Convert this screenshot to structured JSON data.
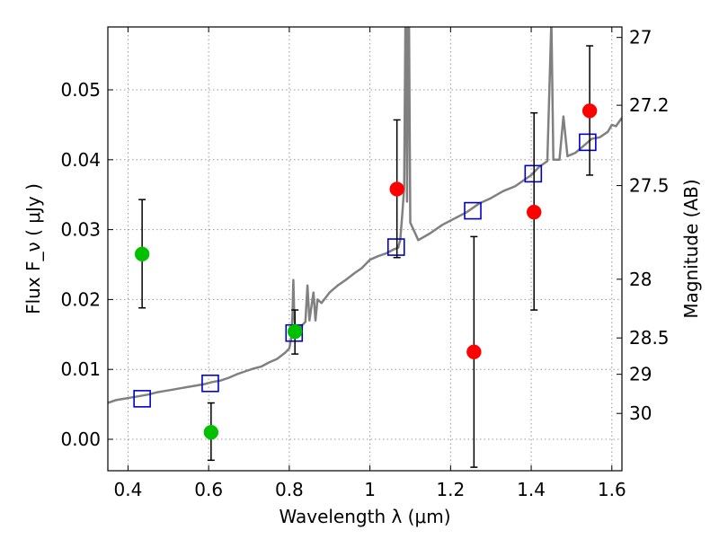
{
  "chart_data": {
    "type": "scatter",
    "xlabel": "Wavelength  λ (μm)",
    "ylabel": "Flux  F_ν  ( μJy )",
    "ylabel_right": "Magnitude (AB)",
    "xlim": [
      0.35,
      1.625
    ],
    "ylim": [
      -0.0045,
      0.059
    ],
    "grid": true,
    "x_ticks": [
      0.4,
      0.6,
      0.8,
      1.0,
      1.2,
      1.4,
      1.6
    ],
    "x_tick_labels": [
      "0.4",
      "0.6",
      "0.8",
      "1",
      "1.2",
      "1.4",
      "1.6"
    ],
    "y_ticks": [
      0.0,
      0.01,
      0.02,
      0.03,
      0.04,
      0.05
    ],
    "y_tick_labels": [
      "0.00",
      "0.01",
      "0.02",
      "0.03",
      "0.04",
      "0.05"
    ],
    "right_ticks": [
      {
        "label": "27",
        "flux": 0.0575
      },
      {
        "label": "27.2",
        "flux": 0.0478
      },
      {
        "label": "27.5",
        "flux": 0.0363
      },
      {
        "label": "28",
        "flux": 0.0229
      },
      {
        "label": "28.5",
        "flux": 0.0145
      },
      {
        "label": "29",
        "flux": 0.0093
      },
      {
        "label": "30",
        "flux": 0.0037
      }
    ],
    "colors": {
      "model_line": "#808080",
      "model_points": "#0000cc",
      "observed_green": "#00c000",
      "observed_red": "#ff0000",
      "error_bar": "#000000",
      "grid": "#999999"
    },
    "model_spectrum": [
      [
        0.35,
        0.0052
      ],
      [
        0.37,
        0.0056
      ],
      [
        0.39,
        0.0058
      ],
      [
        0.41,
        0.006
      ],
      [
        0.43,
        0.0062
      ],
      [
        0.45,
        0.0064
      ],
      [
        0.47,
        0.0067
      ],
      [
        0.49,
        0.0069
      ],
      [
        0.51,
        0.0071
      ],
      [
        0.53,
        0.0073
      ],
      [
        0.55,
        0.0075
      ],
      [
        0.57,
        0.0077
      ],
      [
        0.59,
        0.0079
      ],
      [
        0.61,
        0.0082
      ],
      [
        0.63,
        0.0084
      ],
      [
        0.65,
        0.0088
      ],
      [
        0.67,
        0.0093
      ],
      [
        0.69,
        0.0097
      ],
      [
        0.71,
        0.0101
      ],
      [
        0.73,
        0.0104
      ],
      [
        0.75,
        0.011
      ],
      [
        0.77,
        0.0115
      ],
      [
        0.79,
        0.0124
      ],
      [
        0.8,
        0.013
      ],
      [
        0.805,
        0.0145
      ],
      [
        0.808,
        0.018
      ],
      [
        0.81,
        0.0228
      ],
      [
        0.812,
        0.018
      ],
      [
        0.815,
        0.0155
      ],
      [
        0.82,
        0.0158
      ],
      [
        0.83,
        0.0162
      ],
      [
        0.84,
        0.0168
      ],
      [
        0.845,
        0.022
      ],
      [
        0.85,
        0.017
      ],
      [
        0.86,
        0.021
      ],
      [
        0.865,
        0.017
      ],
      [
        0.87,
        0.02
      ],
      [
        0.88,
        0.0195
      ],
      [
        0.9,
        0.021
      ],
      [
        0.92,
        0.022
      ],
      [
        0.94,
        0.0228
      ],
      [
        0.96,
        0.0237
      ],
      [
        0.98,
        0.0245
      ],
      [
        1.0,
        0.0257
      ],
      [
        1.02,
        0.0262
      ],
      [
        1.04,
        0.0266
      ],
      [
        1.06,
        0.0272
      ],
      [
        1.07,
        0.0274
      ],
      [
        1.075,
        0.0285
      ],
      [
        1.08,
        0.032
      ],
      [
        1.085,
        0.036
      ],
      [
        1.088,
        0.06
      ],
      [
        1.09,
        0.06
      ],
      [
        1.092,
        0.034
      ],
      [
        1.095,
        0.06
      ],
      [
        1.097,
        0.06
      ],
      [
        1.1,
        0.031
      ],
      [
        1.12,
        0.0285
      ],
      [
        1.15,
        0.0295
      ],
      [
        1.18,
        0.0307
      ],
      [
        1.21,
        0.0316
      ],
      [
        1.24,
        0.0325
      ],
      [
        1.27,
        0.0337
      ],
      [
        1.3,
        0.0345
      ],
      [
        1.33,
        0.0355
      ],
      [
        1.36,
        0.0362
      ],
      [
        1.38,
        0.037
      ],
      [
        1.4,
        0.0378
      ],
      [
        1.42,
        0.039
      ],
      [
        1.44,
        0.0398
      ],
      [
        1.45,
        0.06
      ],
      [
        1.455,
        0.04
      ],
      [
        1.47,
        0.04
      ],
      [
        1.48,
        0.0462
      ],
      [
        1.49,
        0.0405
      ],
      [
        1.51,
        0.041
      ],
      [
        1.53,
        0.042
      ],
      [
        1.55,
        0.043
      ],
      [
        1.57,
        0.0432
      ],
      [
        1.59,
        0.044
      ],
      [
        1.6,
        0.045
      ],
      [
        1.61,
        0.0448
      ],
      [
        1.625,
        0.046
      ]
    ],
    "series": [
      {
        "kind": "model_points",
        "marker": "open-square",
        "x": [
          0.435,
          0.604,
          0.812,
          1.065,
          1.255,
          1.405,
          1.54
        ],
        "y": [
          0.0058,
          0.008,
          0.0152,
          0.0275,
          0.0327,
          0.038,
          0.0425
        ]
      },
      {
        "kind": "observed",
        "marker": "filled-circle",
        "color": "observed_green",
        "x": [
          0.435,
          0.606,
          0.814
        ],
        "y": [
          0.0265,
          0.001,
          0.0154
        ],
        "err_low": [
          0.0188,
          -0.003,
          0.0122
        ],
        "err_high": [
          0.0343,
          0.0052,
          0.0185
        ]
      },
      {
        "kind": "observed",
        "marker": "filled-circle",
        "color": "observed_red",
        "x": [
          1.067,
          1.258,
          1.407,
          1.545
        ],
        "y": [
          0.0358,
          0.0125,
          0.0325,
          0.047
        ],
        "err_low": [
          0.026,
          -0.004,
          0.0185,
          0.0378
        ],
        "err_high": [
          0.0457,
          0.029,
          0.0467,
          0.0563
        ]
      }
    ]
  }
}
